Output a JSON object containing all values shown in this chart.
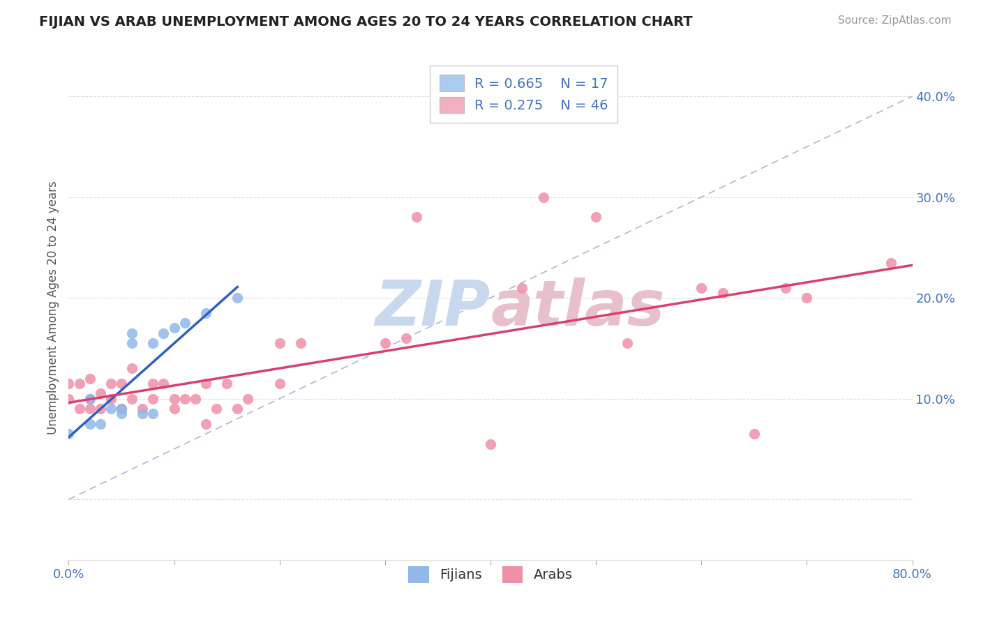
{
  "title": "FIJIAN VS ARAB UNEMPLOYMENT AMONG AGES 20 TO 24 YEARS CORRELATION CHART",
  "source": "Source: ZipAtlas.com",
  "ylabel": "Unemployment Among Ages 20 to 24 years",
  "xlim": [
    0.0,
    0.8
  ],
  "ylim": [
    -0.06,
    0.44
  ],
  "xticks": [
    0.0,
    0.1,
    0.2,
    0.3,
    0.4,
    0.5,
    0.6,
    0.7,
    0.8
  ],
  "xticklabels": [
    "0.0%",
    "",
    "",
    "",
    "",
    "",
    "",
    "",
    "80.0%"
  ],
  "yticks": [
    0.0,
    0.1,
    0.2,
    0.3,
    0.4
  ],
  "yticklabels": [
    "",
    "10.0%",
    "20.0%",
    "30.0%",
    "40.0%"
  ],
  "fijian_R": 0.665,
  "fijian_N": 17,
  "arab_R": 0.275,
  "arab_N": 46,
  "fijian_legend_color": "#aaccf0",
  "arab_legend_color": "#f4b0c0",
  "fijian_scatter_color": "#90b8e8",
  "arab_scatter_color": "#f090a8",
  "fijian_line_color": "#3060c0",
  "arab_line_color": "#d84070",
  "dash_line_color": "#8899cc",
  "legend_text_color": "#4472c4",
  "watermark_color_zip": "#c8d8ee",
  "watermark_color_atlas": "#e8c0cc",
  "background_color": "#ffffff",
  "tick_color": "#4472c4",
  "grid_color": "#dddddd",
  "fijian_x": [
    0.0,
    0.02,
    0.02,
    0.03,
    0.04,
    0.05,
    0.05,
    0.06,
    0.06,
    0.07,
    0.08,
    0.08,
    0.09,
    0.1,
    0.11,
    0.13,
    0.16
  ],
  "fijian_y": [
    0.065,
    0.075,
    0.1,
    0.075,
    0.09,
    0.09,
    0.085,
    0.155,
    0.165,
    0.085,
    0.085,
    0.155,
    0.165,
    0.17,
    0.175,
    0.185,
    0.2
  ],
  "arab_x": [
    0.0,
    0.0,
    0.01,
    0.01,
    0.02,
    0.02,
    0.02,
    0.03,
    0.03,
    0.04,
    0.04,
    0.05,
    0.05,
    0.06,
    0.06,
    0.07,
    0.08,
    0.08,
    0.09,
    0.1,
    0.1,
    0.11,
    0.12,
    0.13,
    0.13,
    0.14,
    0.15,
    0.16,
    0.17,
    0.2,
    0.2,
    0.22,
    0.3,
    0.32,
    0.33,
    0.4,
    0.43,
    0.45,
    0.5,
    0.53,
    0.6,
    0.62,
    0.65,
    0.68,
    0.7,
    0.78
  ],
  "arab_y": [
    0.1,
    0.115,
    0.09,
    0.115,
    0.09,
    0.1,
    0.12,
    0.09,
    0.105,
    0.1,
    0.115,
    0.09,
    0.115,
    0.1,
    0.13,
    0.09,
    0.1,
    0.115,
    0.115,
    0.09,
    0.1,
    0.1,
    0.1,
    0.075,
    0.115,
    0.09,
    0.115,
    0.09,
    0.1,
    0.115,
    0.155,
    0.155,
    0.155,
    0.16,
    0.28,
    0.055,
    0.21,
    0.3,
    0.28,
    0.155,
    0.21,
    0.205,
    0.065,
    0.21,
    0.2,
    0.235
  ]
}
